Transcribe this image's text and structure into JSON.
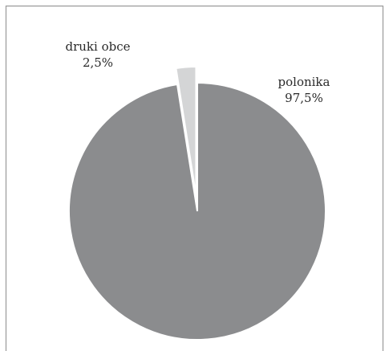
{
  "chart_data": {
    "type": "pie",
    "title": "",
    "slices": [
      {
        "name": "polonika",
        "value": 97.5,
        "value_label": "97,5%",
        "color": "#8b8c8e",
        "exploded": false
      },
      {
        "name": "druki obce",
        "value": 2.5,
        "value_label": "2,5%",
        "color": "#d4d5d6",
        "exploded": true
      }
    ],
    "start_angle_deg": 0,
    "direction": "clockwise",
    "border_color": "#9a9a9a",
    "separator_color": "#ffffff"
  }
}
